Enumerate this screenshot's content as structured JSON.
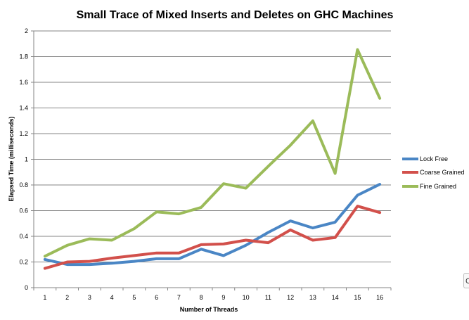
{
  "chart_data": {
    "type": "line",
    "title": "Small Trace of Mixed Inserts and Deletes on GHC Machines",
    "xlabel": "Number of Threads",
    "ylabel": "Elapsed Time (milliseconds)",
    "x": [
      1,
      2,
      3,
      4,
      5,
      6,
      7,
      8,
      9,
      10,
      11,
      12,
      13,
      14,
      15,
      16
    ],
    "ylim": [
      0,
      2
    ],
    "yticks": [
      "0",
      "0.2",
      "0.4",
      "0.6",
      "0.8",
      "1",
      "1.2",
      "1.4",
      "1.6",
      "1.8",
      "2"
    ],
    "xticks": [
      "1",
      "2",
      "3",
      "4",
      "5",
      "6",
      "7",
      "8",
      "9",
      "10",
      "11",
      "12",
      "13",
      "14",
      "15",
      "16"
    ],
    "grid": true,
    "legend_position": "right",
    "series": [
      {
        "name": "Lock Free",
        "color": "#4a86c5",
        "values": [
          0.22,
          0.18,
          0.18,
          0.19,
          0.205,
          0.225,
          0.225,
          0.3,
          0.25,
          0.33,
          0.43,
          0.52,
          0.465,
          0.51,
          0.72,
          0.805
        ]
      },
      {
        "name": "Coarse Grained",
        "color": "#d2504b",
        "values": [
          0.15,
          0.2,
          0.205,
          0.23,
          0.25,
          0.27,
          0.27,
          0.335,
          0.34,
          0.37,
          0.35,
          0.45,
          0.37,
          0.39,
          0.635,
          0.585
        ]
      },
      {
        "name": "Fine Grained",
        "color": "#9bbb59",
        "values": [
          0.245,
          0.33,
          0.38,
          0.37,
          0.46,
          0.59,
          0.575,
          0.625,
          0.81,
          0.775,
          0.945,
          1.11,
          1.3,
          0.89,
          1.855,
          1.475
        ]
      }
    ]
  },
  "edge_glyph": "C"
}
